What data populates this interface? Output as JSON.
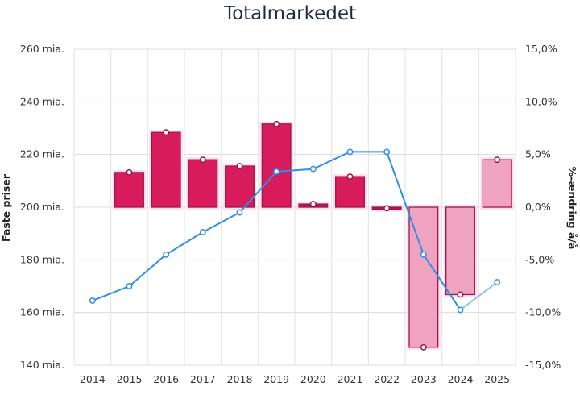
{
  "title": "Totalmarkedet",
  "chart_data": {
    "type": "bar",
    "title": "Totalmarkedet",
    "ylabel_left": "Faste priser",
    "ylabel_right": "%-ændring å/å",
    "categories": [
      "2014",
      "2015",
      "2016",
      "2017",
      "2018",
      "2019",
      "2020",
      "2021",
      "2022",
      "2023",
      "2024",
      "2025"
    ],
    "left_axis": {
      "ylim": [
        140,
        260
      ],
      "ticks": [
        260,
        240,
        220,
        200,
        180,
        160,
        140
      ],
      "tick_labels": [
        "260 mia.",
        "240 mia.",
        "220 mia.",
        "200 mia.",
        "180 mia.",
        "160 mia.",
        "140 mia."
      ]
    },
    "right_axis": {
      "ylim": [
        -15,
        15
      ],
      "ticks": [
        15,
        10,
        5,
        0,
        -5,
        -10,
        -15
      ],
      "tick_labels": [
        "15,0%",
        "10,0%",
        "5,0%",
        "0,0%",
        "-5,0%",
        "-10,0%",
        "-15,0%"
      ]
    },
    "grid": true,
    "series": [
      {
        "type": "bar",
        "axis": "right",
        "values": [
          null,
          3.3,
          7.1,
          4.5,
          3.9,
          7.9,
          0.3,
          2.9,
          -0.1,
          -13.3,
          -8.3,
          4.5
        ],
        "colors": [
          "",
          "#d81b5a",
          "#d81b5a",
          "#d81b5a",
          "#d81b5a",
          "#d81b5a",
          "#b5195a",
          "#d81b5a",
          "#b5195a",
          "#f0a3bf",
          "#f0a3bf",
          "#f0a3bf"
        ]
      },
      {
        "type": "line",
        "axis": "left",
        "color": "#2f8fe8",
        "values": [
          164.5,
          170.0,
          182.0,
          190.5,
          198.0,
          213.5,
          214.5,
          221.0,
          221.0,
          182.0,
          161.0,
          171.5
        ],
        "segment_light_from_index": 10
      }
    ]
  }
}
